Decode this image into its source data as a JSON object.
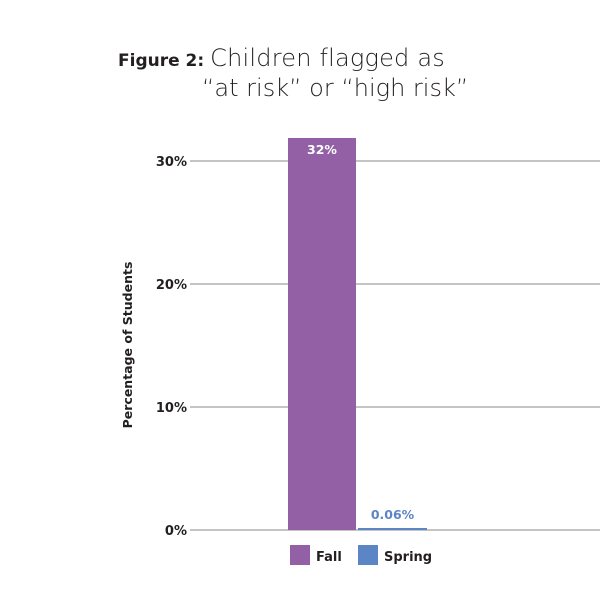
{
  "figure_label": "Figure 2:",
  "title_line1": "Children flagged as",
  "title_line2": "“at risk” or “high risk”",
  "colors": {
    "fall": "#9360a6",
    "spring": "#5b85c5",
    "grid": "#8a8a8a",
    "text": "#231f20"
  },
  "chart_data": {
    "type": "bar",
    "title": "Children flagged as “at risk” or “high risk”",
    "ylabel": "Percentage of Students",
    "xlabel": "",
    "ylim": [
      0,
      30
    ],
    "yticks": [
      0,
      10,
      20,
      30
    ],
    "ytick_labels": [
      "0%",
      "10%",
      "20%",
      "30%"
    ],
    "series": [
      {
        "name": "Fall",
        "values": [
          32
        ],
        "label": "32%"
      },
      {
        "name": "Spring",
        "values": [
          0.06
        ],
        "label": "0.06%"
      }
    ],
    "legend": {
      "placement": "bottom",
      "entries": [
        "Fall",
        "Spring"
      ]
    },
    "grid": true
  }
}
